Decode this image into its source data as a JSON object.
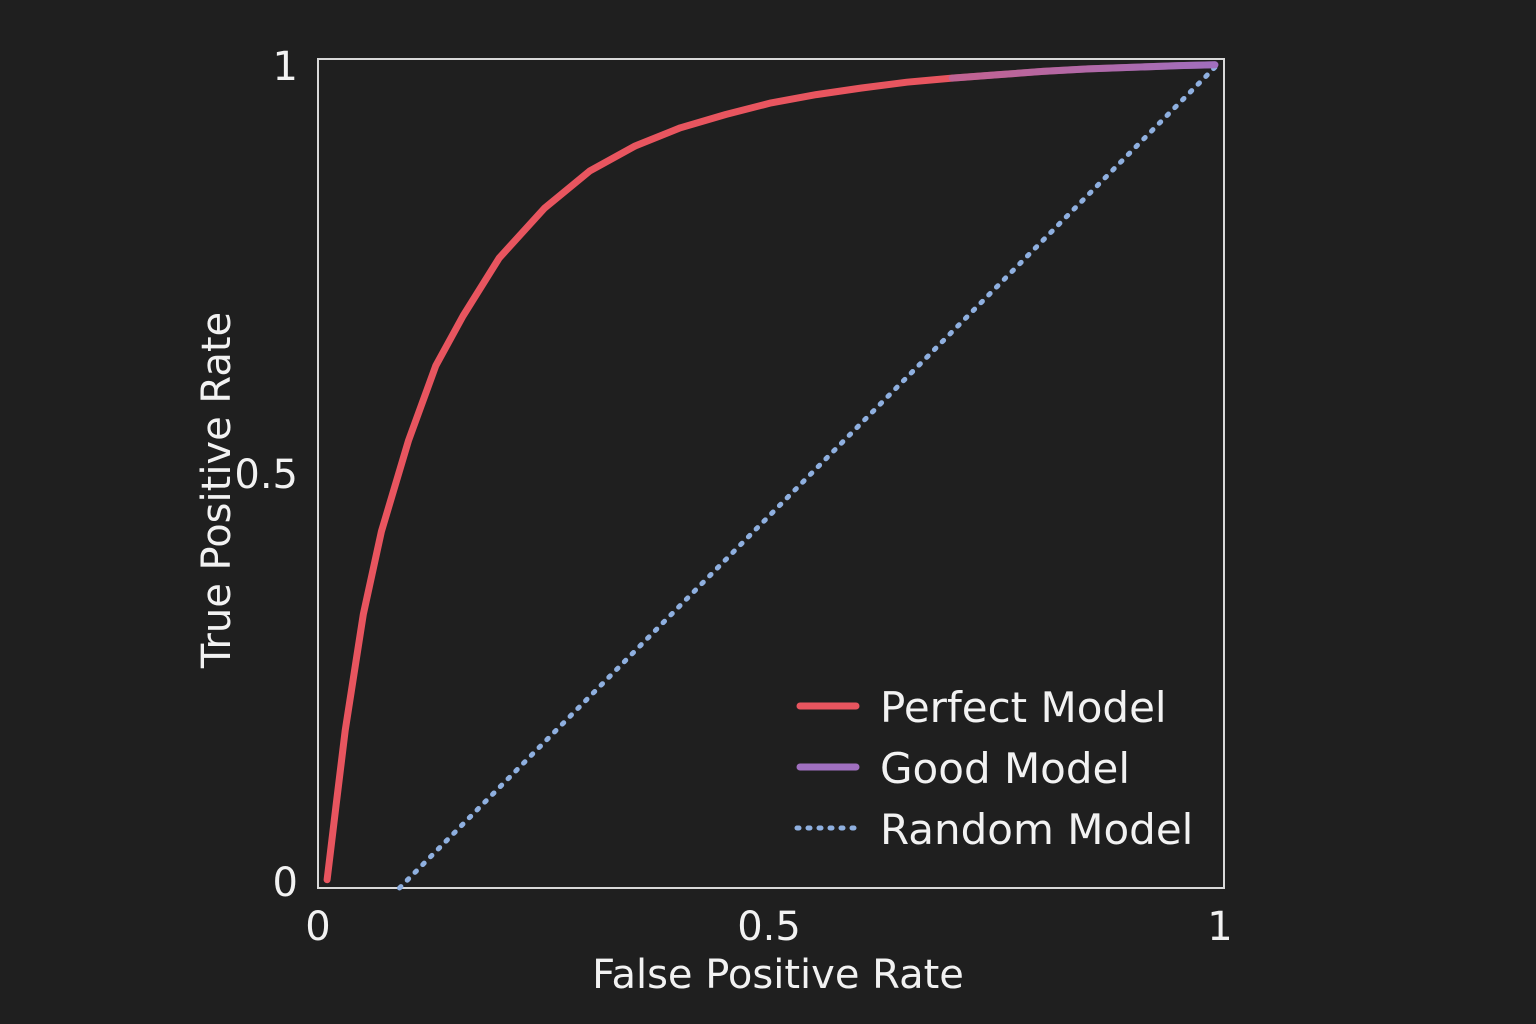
{
  "chart_data": {
    "type": "line",
    "title": "",
    "xlabel": "False Positive Rate",
    "ylabel": "True Positive Rate",
    "xlim": [
      0,
      1
    ],
    "ylim": [
      0,
      1
    ],
    "x_ticks": [
      "0",
      "0.5",
      "1"
    ],
    "y_ticks": [
      "0",
      "0.5",
      "1"
    ],
    "grid": false,
    "legend_position": "bottom-right",
    "colors": {
      "background": "#1f1f1f",
      "frame": "#d9d9d9",
      "text": "#f2f2f2",
      "perfect": "#e8555f",
      "good": "#a070c0",
      "random": "#8fb0e0"
    },
    "series": [
      {
        "name": "Perfect Model",
        "style": "solid",
        "x": [
          0.01,
          0.02,
          0.03,
          0.05,
          0.07,
          0.1,
          0.13,
          0.16,
          0.2,
          0.25,
          0.3,
          0.35,
          0.4,
          0.45,
          0.5,
          0.55,
          0.6,
          0.65,
          0.7,
          0.75,
          0.8,
          0.85,
          0.9,
          0.95,
          0.99
        ],
        "y": [
          0.01,
          0.1,
          0.19,
          0.33,
          0.43,
          0.54,
          0.63,
          0.69,
          0.76,
          0.82,
          0.865,
          0.895,
          0.917,
          0.933,
          0.947,
          0.957,
          0.965,
          0.972,
          0.977,
          0.981,
          0.985,
          0.988,
          0.99,
          0.992,
          0.993
        ]
      },
      {
        "name": "Good Model",
        "style": "solid",
        "x": [
          0.7,
          0.75,
          0.8,
          0.85,
          0.9,
          0.95,
          0.99
        ],
        "y": [
          0.977,
          0.981,
          0.985,
          0.988,
          0.99,
          0.992,
          0.993
        ]
      },
      {
        "name": "Random Model",
        "style": "dotted",
        "x": [
          0.09,
          0.99
        ],
        "y": [
          0.0,
          0.99
        ]
      }
    ]
  }
}
